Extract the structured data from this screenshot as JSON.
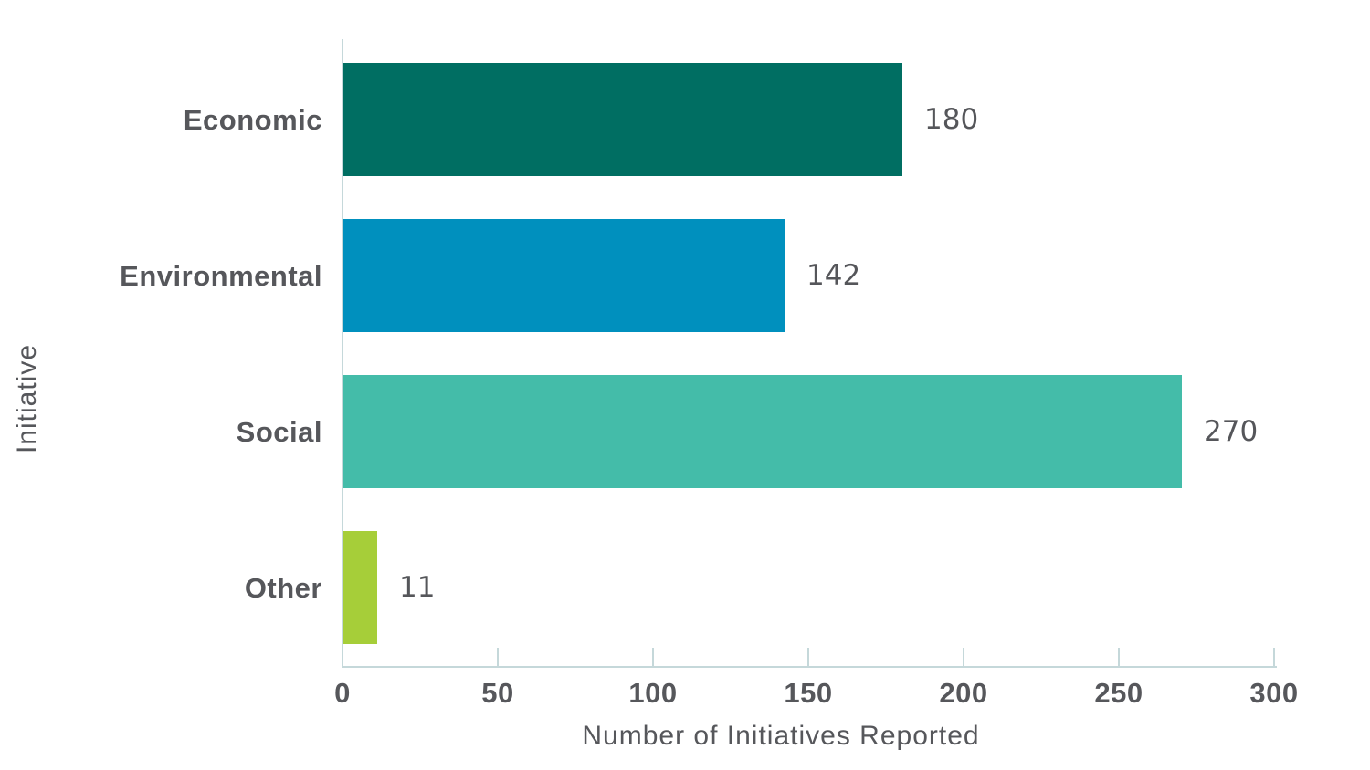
{
  "chart_data": {
    "type": "bar",
    "orientation": "horizontal",
    "title": "",
    "xlabel": "Number of Initiatives Reported",
    "ylabel": "Initiative",
    "categories": [
      "Economic",
      "Environmental",
      "Social",
      "Other"
    ],
    "values": [
      180,
      142,
      270,
      11
    ],
    "value_labels": [
      "180",
      "142",
      "270",
      "11"
    ],
    "bar_colors": [
      "#006E62",
      "#0090BE",
      "#44BCA9",
      "#A6CE39"
    ],
    "xlim": [
      0,
      300
    ],
    "x_ticks": [
      0,
      50,
      100,
      150,
      200,
      250,
      300
    ],
    "x_tick_labels": [
      "0",
      "50",
      "100",
      "150",
      "200",
      "250",
      "300"
    ],
    "grid": false,
    "legend": "none",
    "axis_color": "#C5D8DA",
    "text_color": "#56575B",
    "value_text_color": "#55565A"
  }
}
